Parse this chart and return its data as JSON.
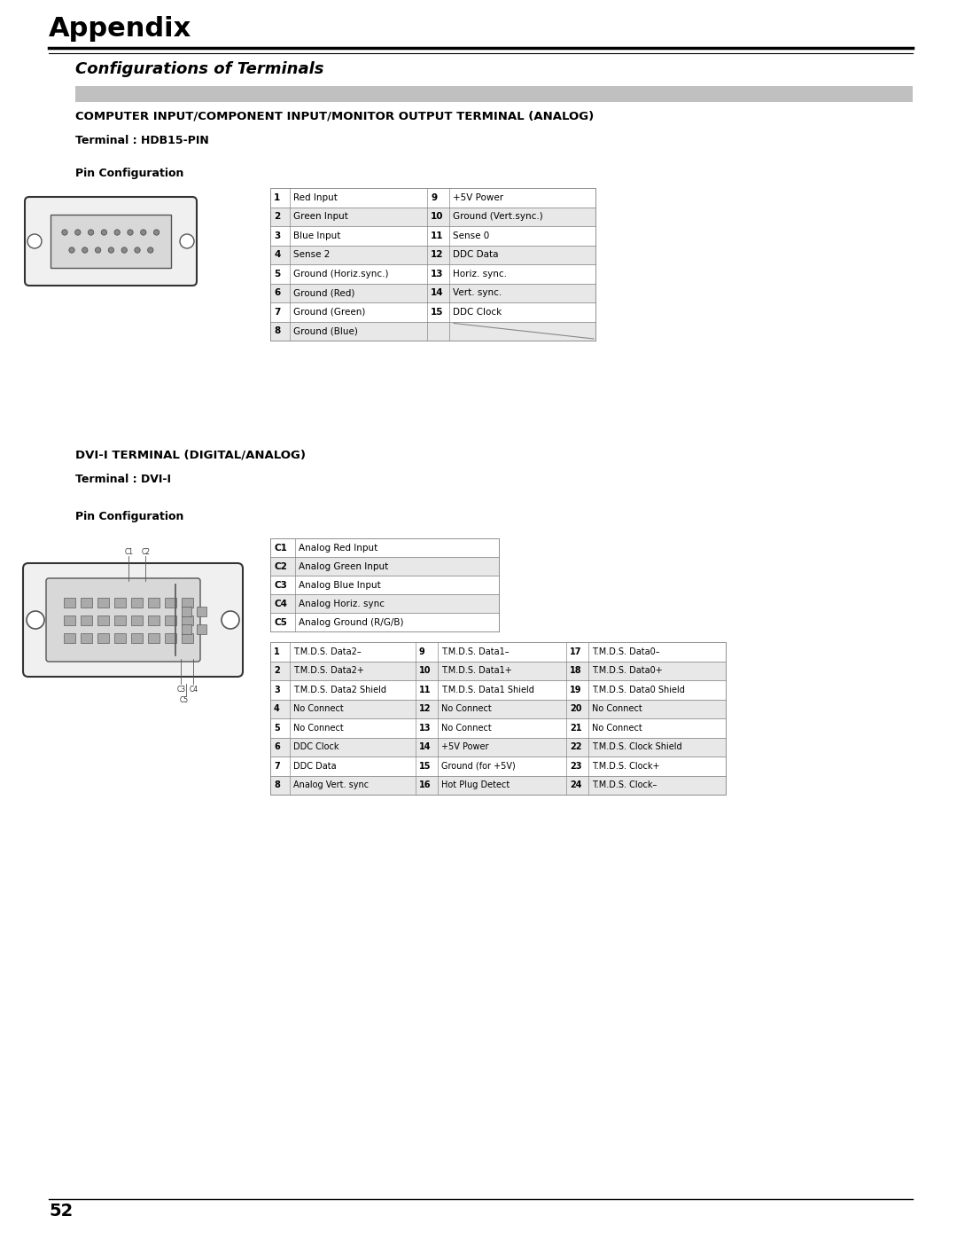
{
  "page_title": "Appendix",
  "section_title": "Configurations of Terminals",
  "hdb15_section_title": "COMPUTER INPUT/COMPONENT INPUT/MONITOR OUTPUT TERMINAL (ANALOG)",
  "hdb15_subtitle": "Terminal : HDB15-PIN",
  "hdb15_pin_config_label": "Pin Configuration",
  "hdb15_pins_left": [
    [
      "1",
      "Red Input"
    ],
    [
      "2",
      "Green Input"
    ],
    [
      "3",
      "Blue Input"
    ],
    [
      "4",
      "Sense 2"
    ],
    [
      "5",
      "Ground (Horiz.sync.)"
    ],
    [
      "6",
      "Ground (Red)"
    ],
    [
      "7",
      "Ground (Green)"
    ],
    [
      "8",
      "Ground (Blue)"
    ]
  ],
  "hdb15_pins_right": [
    [
      "9",
      "+5V Power"
    ],
    [
      "10",
      "Ground (Vert.sync.)"
    ],
    [
      "11",
      "Sense 0"
    ],
    [
      "12",
      "DDC Data"
    ],
    [
      "13",
      "Horiz. sync."
    ],
    [
      "14",
      "Vert. sync."
    ],
    [
      "15",
      "DDC Clock"
    ],
    [
      "",
      ""
    ]
  ],
  "dvi_section_title": "DVI-I TERMINAL (DIGITAL/ANALOG)",
  "dvi_subtitle": "Terminal : DVI-I",
  "dvi_pin_config_label": "Pin Configuration",
  "dvi_analog_pins": [
    [
      "C1",
      "Analog Red Input"
    ],
    [
      "C2",
      "Analog Green Input"
    ],
    [
      "C3",
      "Analog Blue Input"
    ],
    [
      "C4",
      "Analog Horiz. sync"
    ],
    [
      "C5",
      "Analog Ground (R/G/B)"
    ]
  ],
  "dvi_pins_col1": [
    [
      "1",
      "T.M.D.S. Data2–"
    ],
    [
      "2",
      "T.M.D.S. Data2+"
    ],
    [
      "3",
      "T.M.D.S. Data2 Shield"
    ],
    [
      "4",
      "No Connect"
    ],
    [
      "5",
      "No Connect"
    ],
    [
      "6",
      "DDC Clock"
    ],
    [
      "7",
      "DDC Data"
    ],
    [
      "8",
      "Analog Vert. sync"
    ]
  ],
  "dvi_pins_col2": [
    [
      "9",
      "T.M.D.S. Data1–"
    ],
    [
      "10",
      "T.M.D.S. Data1+"
    ],
    [
      "11",
      "T.M.D.S. Data1 Shield"
    ],
    [
      "12",
      "No Connect"
    ],
    [
      "13",
      "No Connect"
    ],
    [
      "14",
      "+5V Power"
    ],
    [
      "15",
      "Ground (for +5V)"
    ],
    [
      "16",
      "Hot Plug Detect"
    ]
  ],
  "dvi_pins_col3": [
    [
      "17",
      "T.M.D.S. Data0–"
    ],
    [
      "18",
      "T.M.D.S. Data0+"
    ],
    [
      "19",
      "T.M.D.S. Data0 Shield"
    ],
    [
      "20",
      "No Connect"
    ],
    [
      "21",
      "No Connect"
    ],
    [
      "22",
      "T.M.D.S. Clock Shield"
    ],
    [
      "23",
      "T.M.D.S. Clock+"
    ],
    [
      "24",
      "T.M.D.S. Clock–"
    ]
  ],
  "page_number": "52",
  "bg_color": "#ffffff",
  "header_line_color": "#000000",
  "section_bar_color": "#c0c0c0",
  "table_border_color": "#888888",
  "table_header_bg": "#d0d0d0",
  "table_row_bg1": "#ffffff",
  "table_row_bg2": "#e8e8e8"
}
